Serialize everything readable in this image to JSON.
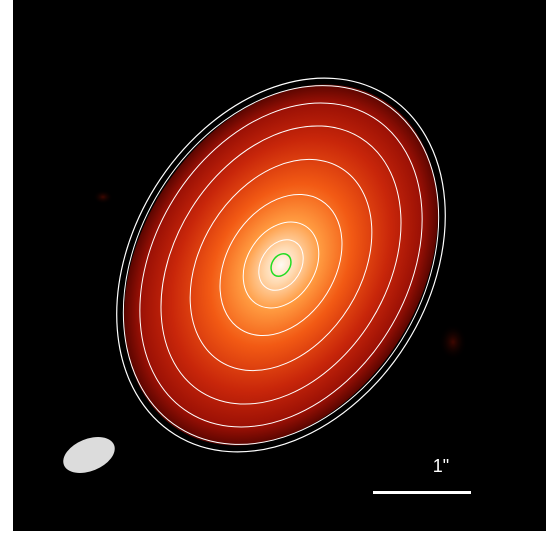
{
  "image": {
    "description_free": true,
    "colors": {
      "background": "#000000",
      "outer_frame": "#ffffff",
      "emission_core": "#fff4e6",
      "emission_mid": "#ff7a22",
      "emission_outer": "#a60d05",
      "contours": "#ffffff",
      "peak_contour": "#22dd22",
      "beam": "#dcdcdc",
      "scale_bar": "#ffffff"
    }
  },
  "scale_bar": {
    "label": "1\""
  }
}
